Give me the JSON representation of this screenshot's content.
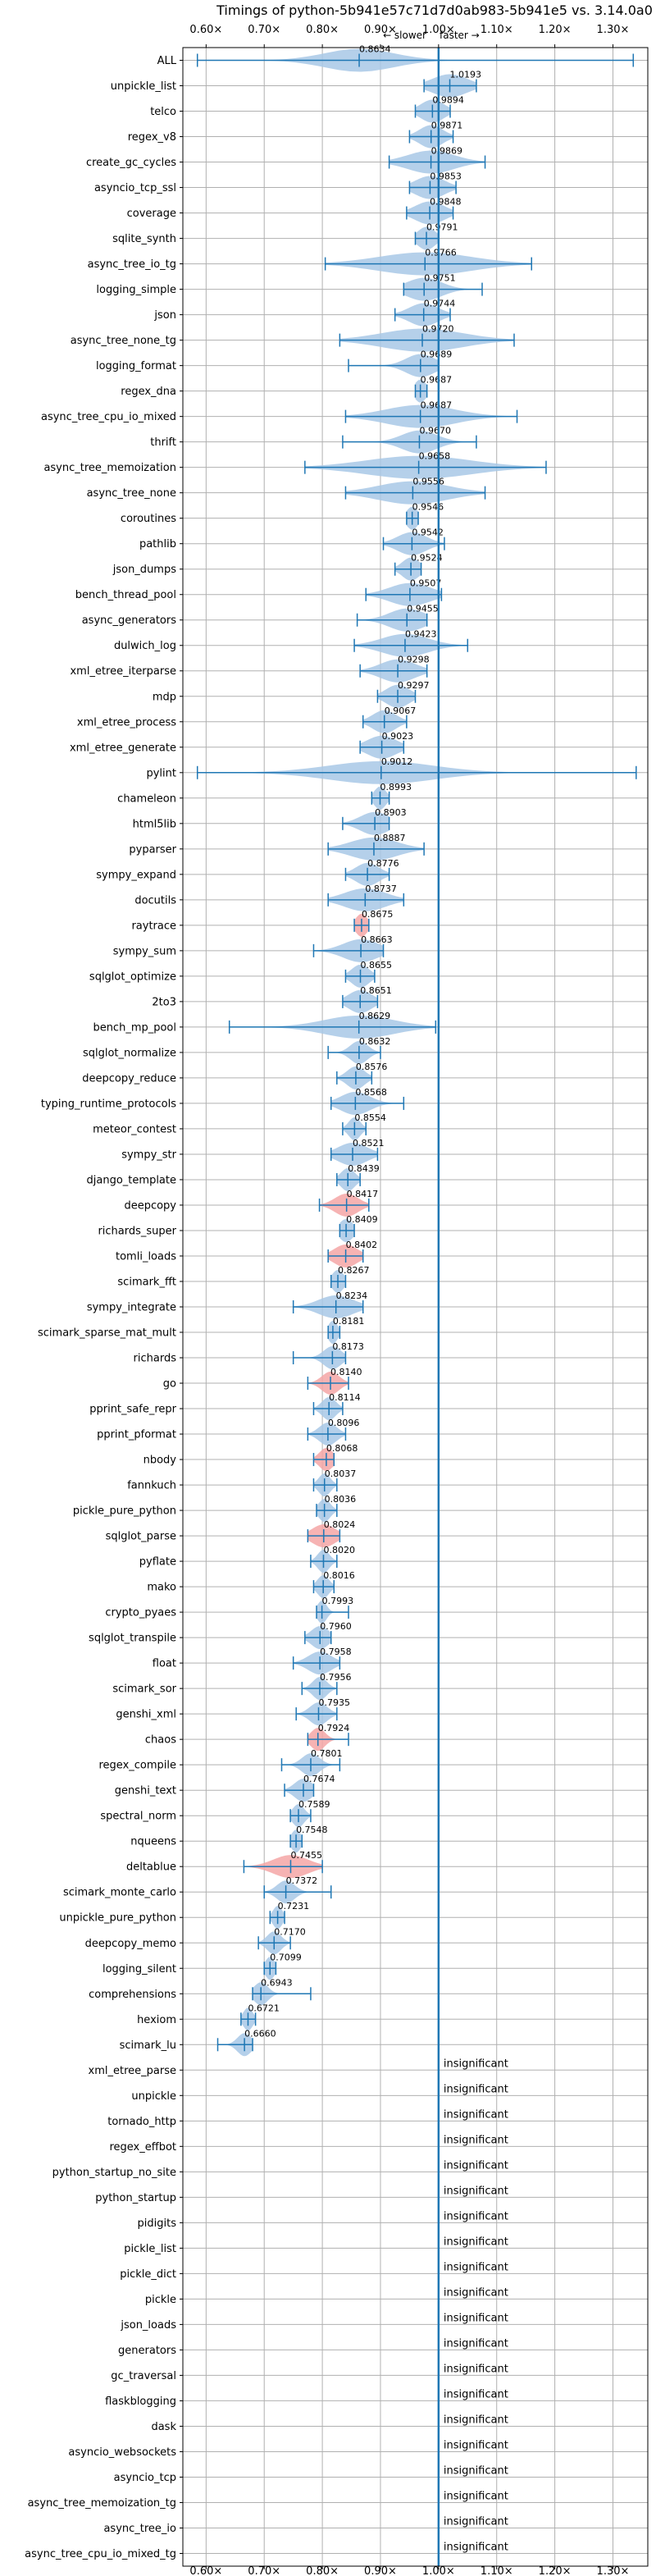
{
  "chart_data": {
    "type": "violin",
    "title": "Timings of python-5b941e57c71d7d0ab983-5b941e5 vs. 3.14.0a0",
    "annotation_slower": "← slower",
    "annotation_faster": "faster →",
    "insignificant_label": "insignificant",
    "xlim": [
      0.56,
      1.36
    ],
    "x_ticks": [
      0.6,
      0.7,
      0.8,
      0.9,
      1.0,
      1.1,
      1.2,
      1.3
    ],
    "x_tick_labels": [
      "0.60×",
      "0.70×",
      "0.80×",
      "0.90×",
      "1.00×",
      "1.10×",
      "1.20×",
      "1.30×"
    ],
    "grid": true,
    "reference_line": 1.0,
    "colors": {
      "normal": "#1f77b4",
      "violin_normal": "#a8c8e6",
      "violin_slow": "#f4a6a6",
      "grid": "#b0b0b0"
    },
    "benchmarks": [
      {
        "name": "ALL",
        "value": "0.8634",
        "mean": 0.8634,
        "min": 0.585,
        "max": 1.335,
        "spread": 0.06,
        "significant": true,
        "slow": false
      },
      {
        "name": "unpickle_list",
        "value": "1.0193",
        "mean": 1.0193,
        "min": 0.975,
        "max": 1.065,
        "spread": 0.03,
        "significant": true,
        "slow": false
      },
      {
        "name": "telco",
        "value": "0.9894",
        "mean": 0.9894,
        "min": 0.96,
        "max": 1.02,
        "spread": 0.02,
        "significant": true,
        "slow": false
      },
      {
        "name": "regex_v8",
        "value": "0.9871",
        "mean": 0.9871,
        "min": 0.95,
        "max": 1.025,
        "spread": 0.02,
        "significant": true,
        "slow": false
      },
      {
        "name": "create_gc_cycles",
        "value": "0.9869",
        "mean": 0.9869,
        "min": 0.915,
        "max": 1.08,
        "spread": 0.04,
        "significant": true,
        "slow": false
      },
      {
        "name": "asyncio_tcp_ssl",
        "value": "0.9853",
        "mean": 0.9853,
        "min": 0.95,
        "max": 1.03,
        "spread": 0.025,
        "significant": true,
        "slow": false
      },
      {
        "name": "coverage",
        "value": "0.9848",
        "mean": 0.9848,
        "min": 0.945,
        "max": 1.025,
        "spread": 0.025,
        "significant": true,
        "slow": false
      },
      {
        "name": "sqlite_synth",
        "value": "0.9791",
        "mean": 0.9791,
        "min": 0.96,
        "max": 1.0,
        "spread": 0.015,
        "significant": true,
        "slow": false
      },
      {
        "name": "async_tree_io_tg",
        "value": "0.9766",
        "mean": 0.9766,
        "min": 0.805,
        "max": 1.16,
        "spread": 0.08,
        "significant": true,
        "slow": false
      },
      {
        "name": "logging_simple",
        "value": "0.9751",
        "mean": 0.9751,
        "min": 0.94,
        "max": 1.075,
        "spread": 0.03,
        "significant": true,
        "slow": false
      },
      {
        "name": "json",
        "value": "0.9744",
        "mean": 0.9744,
        "min": 0.925,
        "max": 1.02,
        "spread": 0.025,
        "significant": true,
        "slow": false
      },
      {
        "name": "async_tree_none_tg",
        "value": "0.9720",
        "mean": 0.972,
        "min": 0.83,
        "max": 1.13,
        "spread": 0.07,
        "significant": true,
        "slow": false
      },
      {
        "name": "logging_format",
        "value": "0.9689",
        "mean": 0.9689,
        "min": 0.845,
        "max": 1.0,
        "spread": 0.025,
        "significant": true,
        "slow": false
      },
      {
        "name": "regex_dna",
        "value": "0.9687",
        "mean": 0.9687,
        "min": 0.96,
        "max": 0.98,
        "spread": 0.01,
        "significant": true,
        "slow": false
      },
      {
        "name": "async_tree_cpu_io_mixed",
        "value": "0.9687",
        "mean": 0.9687,
        "min": 0.84,
        "max": 1.135,
        "spread": 0.06,
        "significant": true,
        "slow": false
      },
      {
        "name": "thrift",
        "value": "0.9670",
        "mean": 0.967,
        "min": 0.835,
        "max": 1.065,
        "spread": 0.03,
        "significant": true,
        "slow": false
      },
      {
        "name": "async_tree_memoization",
        "value": "0.9658",
        "mean": 0.9658,
        "min": 0.77,
        "max": 1.185,
        "spread": 0.09,
        "significant": true,
        "slow": false
      },
      {
        "name": "async_tree_none",
        "value": "0.9556",
        "mean": 0.9556,
        "min": 0.84,
        "max": 1.08,
        "spread": 0.06,
        "significant": true,
        "slow": false
      },
      {
        "name": "coroutines",
        "value": "0.9546",
        "mean": 0.9546,
        "min": 0.945,
        "max": 0.965,
        "spread": 0.01,
        "significant": true,
        "slow": false
      },
      {
        "name": "pathlib",
        "value": "0.9542",
        "mean": 0.9542,
        "min": 0.905,
        "max": 1.01,
        "spread": 0.025,
        "significant": true,
        "slow": false
      },
      {
        "name": "json_dumps",
        "value": "0.9524",
        "mean": 0.9524,
        "min": 0.925,
        "max": 0.97,
        "spread": 0.015,
        "significant": true,
        "slow": false
      },
      {
        "name": "bench_thread_pool",
        "value": "0.9507",
        "mean": 0.9507,
        "min": 0.875,
        "max": 1.005,
        "spread": 0.035,
        "significant": true,
        "slow": false
      },
      {
        "name": "async_generators",
        "value": "0.9455",
        "mean": 0.9455,
        "min": 0.86,
        "max": 0.98,
        "spread": 0.03,
        "significant": true,
        "slow": false
      },
      {
        "name": "dulwich_log",
        "value": "0.9423",
        "mean": 0.9423,
        "min": 0.855,
        "max": 1.05,
        "spread": 0.04,
        "significant": true,
        "slow": false
      },
      {
        "name": "xml_etree_iterparse",
        "value": "0.9298",
        "mean": 0.9298,
        "min": 0.865,
        "max": 0.98,
        "spread": 0.03,
        "significant": true,
        "slow": false
      },
      {
        "name": "mdp",
        "value": "0.9297",
        "mean": 0.9297,
        "min": 0.895,
        "max": 0.96,
        "spread": 0.02,
        "significant": true,
        "slow": false
      },
      {
        "name": "xml_etree_process",
        "value": "0.9067",
        "mean": 0.9067,
        "min": 0.87,
        "max": 0.945,
        "spread": 0.02,
        "significant": true,
        "slow": false
      },
      {
        "name": "xml_etree_generate",
        "value": "0.9023",
        "mean": 0.9023,
        "min": 0.865,
        "max": 0.94,
        "spread": 0.025,
        "significant": true,
        "slow": false
      },
      {
        "name": "pylint",
        "value": "0.9012",
        "mean": 0.9012,
        "min": 0.585,
        "max": 1.34,
        "spread": 0.09,
        "significant": true,
        "slow": false
      },
      {
        "name": "chameleon",
        "value": "0.8993",
        "mean": 0.8993,
        "min": 0.885,
        "max": 0.915,
        "spread": 0.01,
        "significant": true,
        "slow": false
      },
      {
        "name": "html5lib",
        "value": "0.8903",
        "mean": 0.8903,
        "min": 0.835,
        "max": 0.915,
        "spread": 0.025,
        "significant": true,
        "slow": false
      },
      {
        "name": "pyparser",
        "value": "0.8887",
        "mean": 0.8887,
        "min": 0.81,
        "max": 0.975,
        "spread": 0.04,
        "significant": true,
        "slow": false
      },
      {
        "name": "sympy_expand",
        "value": "0.8776",
        "mean": 0.8776,
        "min": 0.84,
        "max": 0.915,
        "spread": 0.02,
        "significant": true,
        "slow": false
      },
      {
        "name": "docutils",
        "value": "0.8737",
        "mean": 0.8737,
        "min": 0.81,
        "max": 0.94,
        "spread": 0.035,
        "significant": true,
        "slow": false
      },
      {
        "name": "raytrace",
        "value": "0.8675",
        "mean": 0.8675,
        "min": 0.855,
        "max": 0.88,
        "spread": 0.01,
        "significant": true,
        "slow": true
      },
      {
        "name": "sympy_sum",
        "value": "0.8663",
        "mean": 0.8663,
        "min": 0.785,
        "max": 0.905,
        "spread": 0.03,
        "significant": true,
        "slow": false
      },
      {
        "name": "sqlglot_optimize",
        "value": "0.8655",
        "mean": 0.8655,
        "min": 0.84,
        "max": 0.89,
        "spread": 0.015,
        "significant": true,
        "slow": false
      },
      {
        "name": "2to3",
        "value": "0.8651",
        "mean": 0.8651,
        "min": 0.835,
        "max": 0.895,
        "spread": 0.02,
        "significant": true,
        "slow": false
      },
      {
        "name": "bench_mp_pool",
        "value": "0.8629",
        "mean": 0.8629,
        "min": 0.64,
        "max": 0.995,
        "spread": 0.06,
        "significant": true,
        "slow": false
      },
      {
        "name": "sqlglot_normalize",
        "value": "0.8632",
        "mean": 0.8632,
        "min": 0.81,
        "max": 0.9,
        "spread": 0.015,
        "significant": true,
        "slow": false
      },
      {
        "name": "deepcopy_reduce",
        "value": "0.8576",
        "mean": 0.8576,
        "min": 0.825,
        "max": 0.885,
        "spread": 0.015,
        "significant": true,
        "slow": false
      },
      {
        "name": "typing_runtime_protocols",
        "value": "0.8568",
        "mean": 0.8568,
        "min": 0.815,
        "max": 0.94,
        "spread": 0.025,
        "significant": true,
        "slow": false
      },
      {
        "name": "meteor_contest",
        "value": "0.8554",
        "mean": 0.8554,
        "min": 0.835,
        "max": 0.875,
        "spread": 0.01,
        "significant": true,
        "slow": false
      },
      {
        "name": "sympy_str",
        "value": "0.8521",
        "mean": 0.8521,
        "min": 0.815,
        "max": 0.895,
        "spread": 0.025,
        "significant": true,
        "slow": false
      },
      {
        "name": "django_template",
        "value": "0.8439",
        "mean": 0.8439,
        "min": 0.825,
        "max": 0.865,
        "spread": 0.012,
        "significant": true,
        "slow": false
      },
      {
        "name": "deepcopy",
        "value": "0.8417",
        "mean": 0.8417,
        "min": 0.795,
        "max": 0.88,
        "spread": 0.02,
        "significant": true,
        "slow": true
      },
      {
        "name": "richards_super",
        "value": "0.8409",
        "mean": 0.8409,
        "min": 0.83,
        "max": 0.855,
        "spread": 0.012,
        "significant": true,
        "slow": false
      },
      {
        "name": "tomli_loads",
        "value": "0.8402",
        "mean": 0.8402,
        "min": 0.81,
        "max": 0.87,
        "spread": 0.02,
        "significant": true,
        "slow": true
      },
      {
        "name": "scimark_fft",
        "value": "0.8267",
        "mean": 0.8267,
        "min": 0.815,
        "max": 0.84,
        "spread": 0.01,
        "significant": true,
        "slow": false
      },
      {
        "name": "sympy_integrate",
        "value": "0.8234",
        "mean": 0.8234,
        "min": 0.75,
        "max": 0.87,
        "spread": 0.03,
        "significant": true,
        "slow": false
      },
      {
        "name": "scimark_sparse_mat_mult",
        "value": "0.8181",
        "mean": 0.8181,
        "min": 0.81,
        "max": 0.83,
        "spread": 0.008,
        "significant": true,
        "slow": false
      },
      {
        "name": "richards",
        "value": "0.8173",
        "mean": 0.8173,
        "min": 0.75,
        "max": 0.84,
        "spread": 0.015,
        "significant": true,
        "slow": false
      },
      {
        "name": "go",
        "value": "0.8140",
        "mean": 0.814,
        "min": 0.775,
        "max": 0.845,
        "spread": 0.015,
        "significant": true,
        "slow": true
      },
      {
        "name": "pprint_safe_repr",
        "value": "0.8114",
        "mean": 0.8114,
        "min": 0.785,
        "max": 0.835,
        "spread": 0.012,
        "significant": true,
        "slow": false
      },
      {
        "name": "pprint_pformat",
        "value": "0.8096",
        "mean": 0.8096,
        "min": 0.775,
        "max": 0.84,
        "spread": 0.015,
        "significant": true,
        "slow": false
      },
      {
        "name": "nbody",
        "value": "0.8068",
        "mean": 0.8068,
        "min": 0.785,
        "max": 0.82,
        "spread": 0.012,
        "significant": true,
        "slow": true
      },
      {
        "name": "fannkuch",
        "value": "0.8037",
        "mean": 0.8037,
        "min": 0.785,
        "max": 0.825,
        "spread": 0.01,
        "significant": true,
        "slow": false
      },
      {
        "name": "pickle_pure_python",
        "value": "0.8036",
        "mean": 0.8036,
        "min": 0.79,
        "max": 0.825,
        "spread": 0.01,
        "significant": true,
        "slow": false
      },
      {
        "name": "sqlglot_parse",
        "value": "0.8024",
        "mean": 0.8024,
        "min": 0.775,
        "max": 0.83,
        "spread": 0.02,
        "significant": true,
        "slow": true
      },
      {
        "name": "pyflate",
        "value": "0.8020",
        "mean": 0.802,
        "min": 0.78,
        "max": 0.825,
        "spread": 0.01,
        "significant": true,
        "slow": false
      },
      {
        "name": "mako",
        "value": "0.8016",
        "mean": 0.8016,
        "min": 0.785,
        "max": 0.82,
        "spread": 0.01,
        "significant": true,
        "slow": false
      },
      {
        "name": "crypto_pyaes",
        "value": "0.7993",
        "mean": 0.7993,
        "min": 0.79,
        "max": 0.845,
        "spread": 0.008,
        "significant": true,
        "slow": false
      },
      {
        "name": "sqlglot_transpile",
        "value": "0.7960",
        "mean": 0.796,
        "min": 0.77,
        "max": 0.815,
        "spread": 0.015,
        "significant": true,
        "slow": false
      },
      {
        "name": "float",
        "value": "0.7958",
        "mean": 0.7958,
        "min": 0.75,
        "max": 0.83,
        "spread": 0.02,
        "significant": true,
        "slow": false
      },
      {
        "name": "scimark_sor",
        "value": "0.7956",
        "mean": 0.7956,
        "min": 0.765,
        "max": 0.825,
        "spread": 0.012,
        "significant": true,
        "slow": false
      },
      {
        "name": "genshi_xml",
        "value": "0.7935",
        "mean": 0.7935,
        "min": 0.755,
        "max": 0.825,
        "spread": 0.015,
        "significant": true,
        "slow": false
      },
      {
        "name": "chaos",
        "value": "0.7924",
        "mean": 0.7924,
        "min": 0.775,
        "max": 0.845,
        "spread": 0.012,
        "significant": true,
        "slow": true
      },
      {
        "name": "regex_compile",
        "value": "0.7801",
        "mean": 0.7801,
        "min": 0.73,
        "max": 0.83,
        "spread": 0.015,
        "significant": true,
        "slow": false
      },
      {
        "name": "genshi_text",
        "value": "0.7674",
        "mean": 0.7674,
        "min": 0.735,
        "max": 0.785,
        "spread": 0.015,
        "significant": true,
        "slow": false
      },
      {
        "name": "spectral_norm",
        "value": "0.7589",
        "mean": 0.7589,
        "min": 0.745,
        "max": 0.78,
        "spread": 0.01,
        "significant": true,
        "slow": false
      },
      {
        "name": "nqueens",
        "value": "0.7548",
        "mean": 0.7548,
        "min": 0.745,
        "max": 0.765,
        "spread": 0.008,
        "significant": true,
        "slow": false
      },
      {
        "name": "deltablue",
        "value": "0.7455",
        "mean": 0.7455,
        "min": 0.665,
        "max": 0.8,
        "spread": 0.03,
        "significant": true,
        "slow": true
      },
      {
        "name": "scimark_monte_carlo",
        "value": "0.7372",
        "mean": 0.7372,
        "min": 0.7,
        "max": 0.815,
        "spread": 0.015,
        "significant": true,
        "slow": false
      },
      {
        "name": "unpickle_pure_python",
        "value": "0.7231",
        "mean": 0.7231,
        "min": 0.71,
        "max": 0.735,
        "spread": 0.008,
        "significant": true,
        "slow": false
      },
      {
        "name": "deepcopy_memo",
        "value": "0.7170",
        "mean": 0.717,
        "min": 0.69,
        "max": 0.745,
        "spread": 0.012,
        "significant": true,
        "slow": false
      },
      {
        "name": "logging_silent",
        "value": "0.7099",
        "mean": 0.7099,
        "min": 0.7,
        "max": 0.72,
        "spread": 0.008,
        "significant": true,
        "slow": false
      },
      {
        "name": "comprehensions",
        "value": "0.6943",
        "mean": 0.6943,
        "min": 0.68,
        "max": 0.78,
        "spread": 0.012,
        "significant": true,
        "slow": false
      },
      {
        "name": "hexiom",
        "value": "0.6721",
        "mean": 0.6721,
        "min": 0.66,
        "max": 0.685,
        "spread": 0.008,
        "significant": true,
        "slow": false
      },
      {
        "name": "scimark_lu",
        "value": "0.6660",
        "mean": 0.666,
        "min": 0.62,
        "max": 0.68,
        "spread": 0.012,
        "significant": true,
        "slow": false
      },
      {
        "name": "xml_etree_parse",
        "significant": false
      },
      {
        "name": "unpickle",
        "significant": false
      },
      {
        "name": "tornado_http",
        "significant": false
      },
      {
        "name": "regex_effbot",
        "significant": false
      },
      {
        "name": "python_startup_no_site",
        "significant": false
      },
      {
        "name": "python_startup",
        "significant": false
      },
      {
        "name": "pidigits",
        "significant": false
      },
      {
        "name": "pickle_list",
        "significant": false
      },
      {
        "name": "pickle_dict",
        "significant": false
      },
      {
        "name": "pickle",
        "significant": false
      },
      {
        "name": "json_loads",
        "significant": false
      },
      {
        "name": "generators",
        "significant": false
      },
      {
        "name": "gc_traversal",
        "significant": false
      },
      {
        "name": "flaskblogging",
        "significant": false
      },
      {
        "name": "dask",
        "significant": false
      },
      {
        "name": "asyncio_websockets",
        "significant": false
      },
      {
        "name": "asyncio_tcp",
        "significant": false
      },
      {
        "name": "async_tree_memoization_tg",
        "significant": false
      },
      {
        "name": "async_tree_io",
        "significant": false
      },
      {
        "name": "async_tree_cpu_io_mixed_tg",
        "significant": false
      }
    ]
  }
}
